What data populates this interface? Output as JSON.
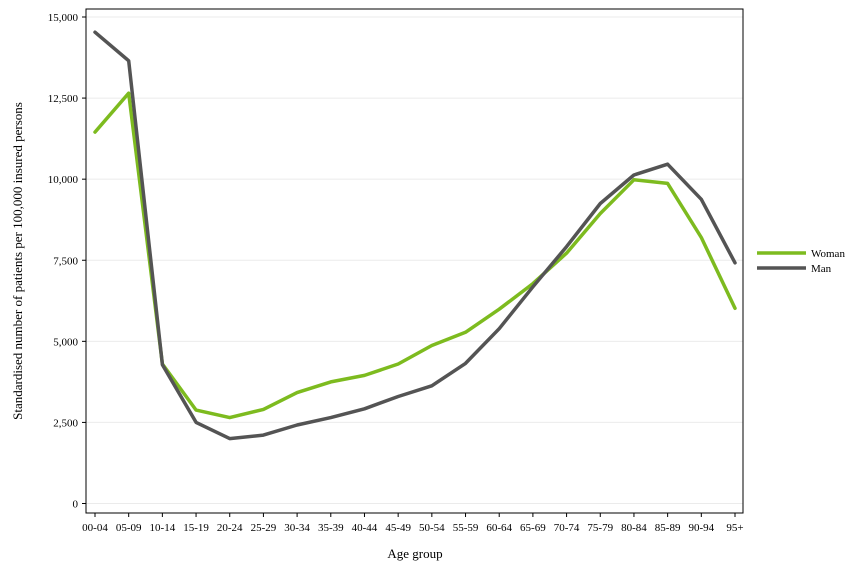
{
  "chart_data": {
    "type": "line",
    "categories": [
      "00-04",
      "05-09",
      "10-14",
      "15-19",
      "20-24",
      "25-29",
      "30-34",
      "35-39",
      "40-44",
      "45-49",
      "50-54",
      "55-59",
      "60-64",
      "65-69",
      "70-74",
      "75-79",
      "80-84",
      "85-89",
      "90-94",
      "95+"
    ],
    "series": [
      {
        "name": "Woman",
        "color": "#7dbb1f",
        "values": [
          11450,
          12650,
          4300,
          2880,
          2650,
          2900,
          3420,
          3750,
          3950,
          4300,
          4870,
          5280,
          5990,
          6780,
          7720,
          8940,
          9980,
          9870,
          8200,
          6020
        ]
      },
      {
        "name": "Man",
        "color": "#545454",
        "values": [
          14530,
          13650,
          4280,
          2500,
          2000,
          2110,
          2420,
          2650,
          2920,
          3300,
          3630,
          4320,
          5390,
          6680,
          7920,
          9250,
          10130,
          10460,
          9380,
          7420
        ]
      }
    ],
    "xlabel": "Age group",
    "ylabel": "Standardised number of patients per 100,000 insured persons",
    "ylim": [
      0,
      15000
    ],
    "yticks": [
      0,
      2500,
      5000,
      7500,
      10000,
      12500,
      15000
    ],
    "ytick_labels": [
      "0",
      "2,500",
      "5,000",
      "7,500",
      "10,000",
      "12,500",
      "15,000"
    ],
    "grid": true,
    "legend_position": "right"
  }
}
